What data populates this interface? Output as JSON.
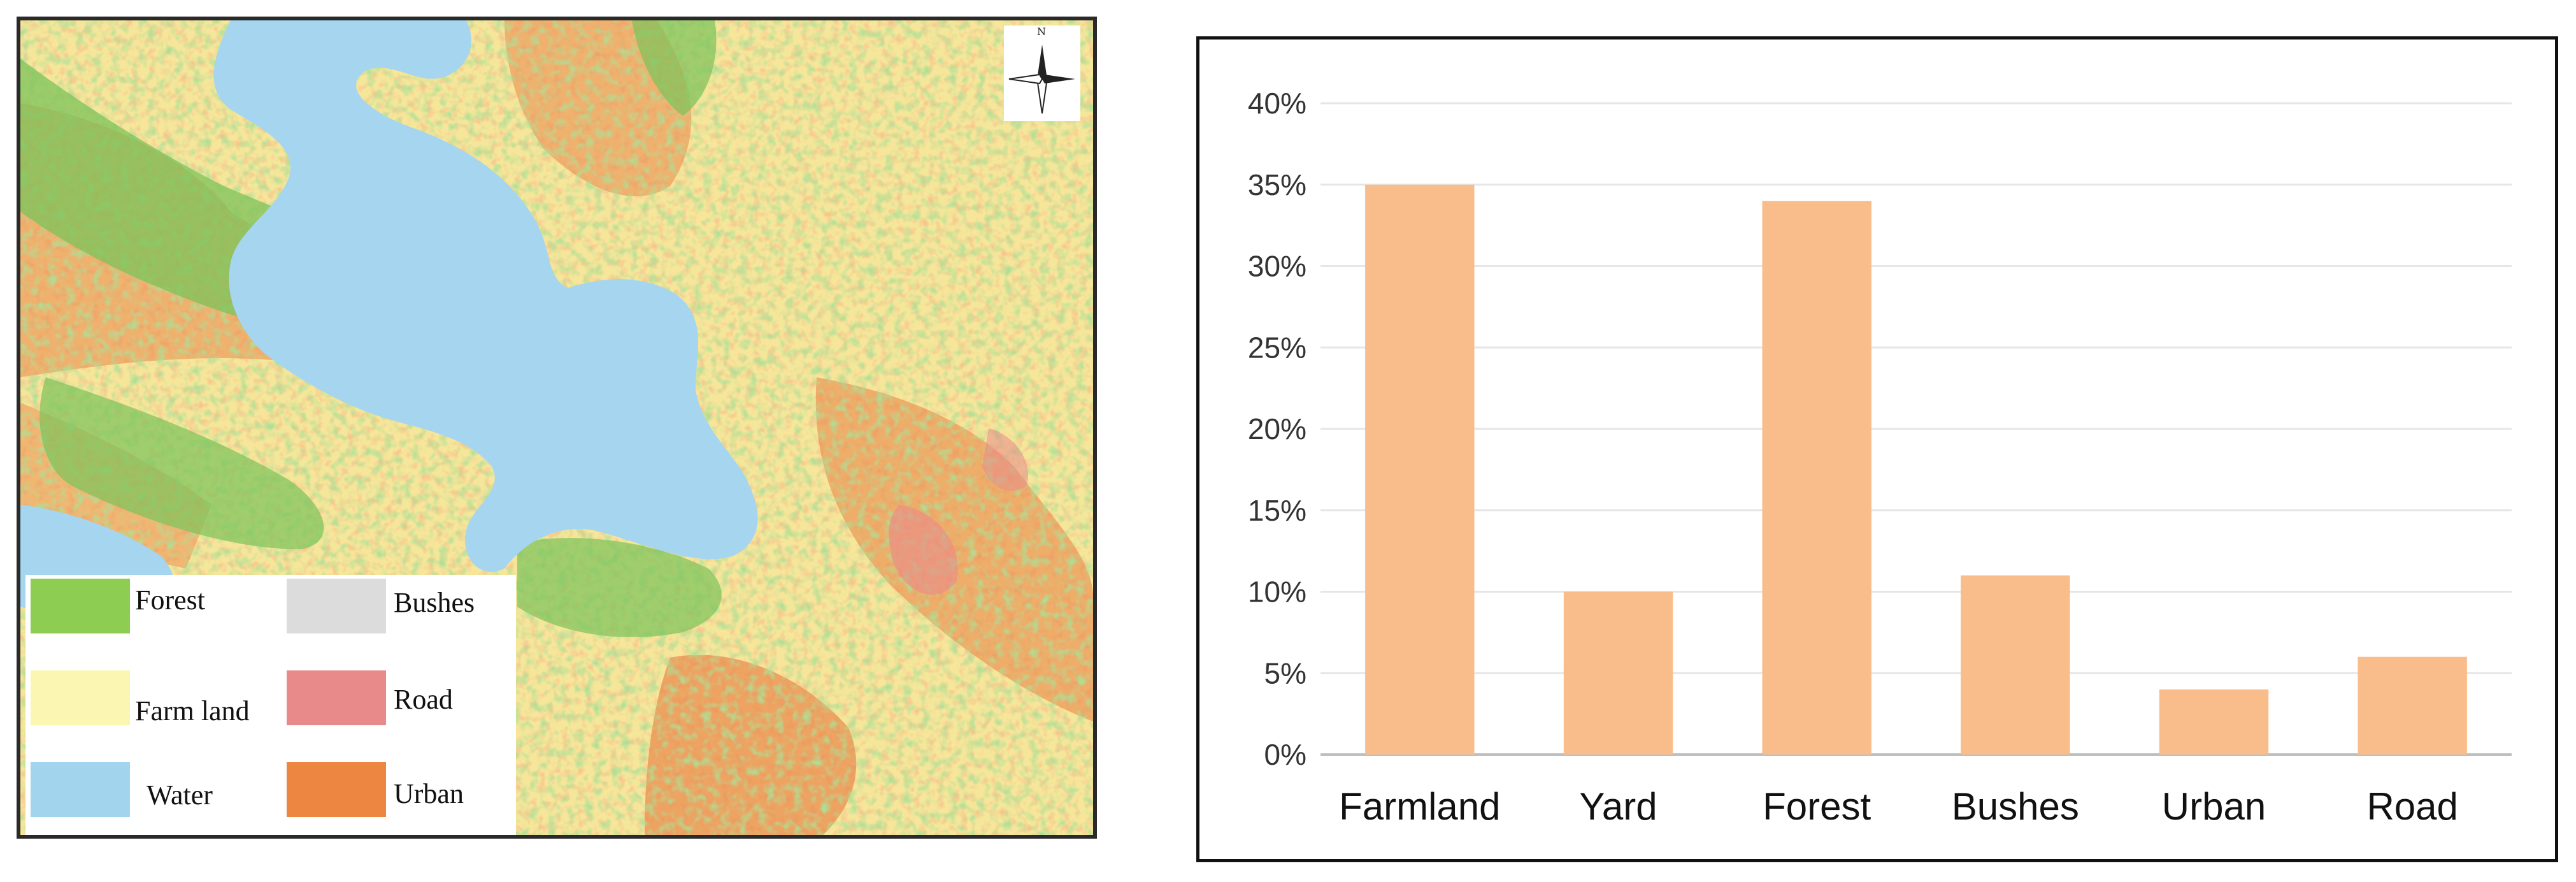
{
  "map": {
    "compass_label": "N",
    "legend": [
      {
        "label": "Forest",
        "color": "#8ccd52"
      },
      {
        "label": "Bushes",
        "color": "#dcdcdc"
      },
      {
        "label": "Farm land",
        "color": "#fbf7b2"
      },
      {
        "label": "Road",
        "color": "#e98a8a"
      },
      {
        "label": "Water",
        "color": "#a3d4ee"
      },
      {
        "label": "Urban",
        "color": "#ec8640"
      }
    ]
  },
  "chart_data": {
    "type": "bar",
    "categories": [
      "Farmland",
      "Yard",
      "Forest",
      "Bushes",
      "Urban",
      "Road"
    ],
    "values": [
      35,
      10,
      34,
      11,
      4,
      6
    ],
    "ylim": [
      0,
      40
    ],
    "yticks": [
      "0%",
      "5%",
      "10%",
      "15%",
      "20%",
      "25%",
      "30%",
      "35%",
      "40%"
    ],
    "bar_color": "#f8bd8a",
    "grid": true,
    "title": "",
    "xlabel": "",
    "ylabel": ""
  }
}
